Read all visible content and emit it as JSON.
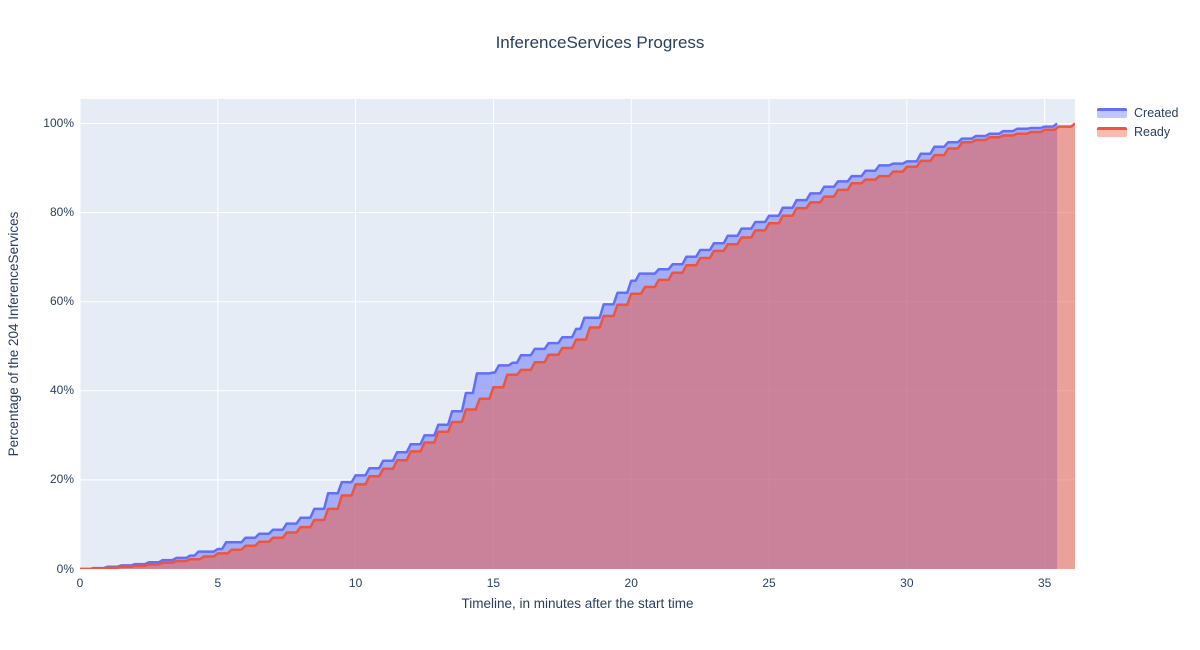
{
  "title": "InferenceServices Progress",
  "colors": {
    "created_line": "#636efa",
    "created_fill": "rgba(99,110,250,0.5)",
    "ready_line": "#ef553b",
    "ready_fill": "rgba(239,85,59,0.5)",
    "plot_background": "#e5ecf6",
    "gridline": "#ffffff",
    "text": "#2a3f5f",
    "paper_background": "#ffffff"
  },
  "chart_data": {
    "type": "area",
    "title": "InferenceServices Progress",
    "xlabel": "Timeline, in minutes after the start time",
    "ylabel": "Percentage of the 204 InferenceServices",
    "total_inferenceservices": 204,
    "xlim": [
      0,
      36.1
    ],
    "ylim": [
      0,
      105.5
    ],
    "x_ticks": [
      0,
      5,
      10,
      15,
      20,
      25,
      30,
      35
    ],
    "y_ticks": [
      {
        "value": 0,
        "label": "0%"
      },
      {
        "value": 20,
        "label": "20%"
      },
      {
        "value": 40,
        "label": "40%"
      },
      {
        "value": 60,
        "label": "60%"
      },
      {
        "value": 80,
        "label": "80%"
      },
      {
        "value": 100,
        "label": "100%"
      }
    ],
    "grid": true,
    "legend_position": "outside-top-right",
    "series": [
      {
        "name": "Created",
        "line_color": "#636efa",
        "fill_color": "rgba(99,110,250,0.5)",
        "points": [
          [
            0,
            0
          ],
          [
            0.5,
            0.2
          ],
          [
            1,
            0.5
          ],
          [
            1.5,
            0.8
          ],
          [
            2,
            1.1
          ],
          [
            2.5,
            1.5
          ],
          [
            3,
            2.0
          ],
          [
            3.5,
            2.5
          ],
          [
            4,
            3.0
          ],
          [
            4.3,
            3.9
          ],
          [
            5,
            4.5
          ],
          [
            5.3,
            6.0
          ],
          [
            6,
            7.0
          ],
          [
            6.5,
            7.9
          ],
          [
            7,
            8.8
          ],
          [
            7.5,
            10.2
          ],
          [
            8,
            11.5
          ],
          [
            8.5,
            13.5
          ],
          [
            9,
            17.0
          ],
          [
            9.5,
            19.5
          ],
          [
            10,
            21.0
          ],
          [
            10.5,
            22.6
          ],
          [
            11,
            24.3
          ],
          [
            11.5,
            26.2
          ],
          [
            12,
            28.0
          ],
          [
            12.5,
            30.0
          ],
          [
            13,
            32.4
          ],
          [
            13.5,
            35.4
          ],
          [
            14,
            39.5
          ],
          [
            14.4,
            43.9
          ],
          [
            15,
            44.1
          ],
          [
            15.2,
            45.7
          ],
          [
            15.7,
            46.3
          ],
          [
            16,
            48.0
          ],
          [
            16.5,
            49.4
          ],
          [
            17,
            50.7
          ],
          [
            17.5,
            52.0
          ],
          [
            18,
            53.9
          ],
          [
            18.3,
            56.4
          ],
          [
            19,
            59.4
          ],
          [
            19.5,
            62.0
          ],
          [
            20,
            64.7
          ],
          [
            20.3,
            66.3
          ],
          [
            21,
            67.3
          ],
          [
            21.5,
            68.4
          ],
          [
            22,
            70.1
          ],
          [
            22.5,
            71.6
          ],
          [
            23,
            73.1
          ],
          [
            23.5,
            74.8
          ],
          [
            24,
            76.4
          ],
          [
            24.5,
            77.9
          ],
          [
            25,
            79.3
          ],
          [
            25.5,
            81.1
          ],
          [
            26,
            82.8
          ],
          [
            26.5,
            84.3
          ],
          [
            27,
            85.8
          ],
          [
            27.5,
            87.0
          ],
          [
            28,
            88.2
          ],
          [
            28.5,
            89.4
          ],
          [
            29,
            90.6
          ],
          [
            29.5,
            91.0
          ],
          [
            30,
            91.5
          ],
          [
            30.5,
            93.2
          ],
          [
            31,
            94.8
          ],
          [
            31.5,
            95.8
          ],
          [
            32,
            96.6
          ],
          [
            32.5,
            97.2
          ],
          [
            33,
            97.7
          ],
          [
            33.5,
            98.3
          ],
          [
            34,
            98.8
          ],
          [
            34.5,
            99.0
          ],
          [
            35,
            99.3
          ],
          [
            35.45,
            100
          ]
        ]
      },
      {
        "name": "Ready",
        "line_color": "#ef553b",
        "fill_color": "rgba(239,85,59,0.5)",
        "points": [
          [
            0,
            0
          ],
          [
            0.5,
            0.1
          ],
          [
            1,
            0.3
          ],
          [
            1.5,
            0.5
          ],
          [
            2,
            0.7
          ],
          [
            2.5,
            1.0
          ],
          [
            3,
            1.4
          ],
          [
            3.5,
            1.8
          ],
          [
            4,
            2.2
          ],
          [
            4.5,
            2.8
          ],
          [
            5,
            3.5
          ],
          [
            5.5,
            4.3
          ],
          [
            6,
            5.2
          ],
          [
            6.5,
            6.1
          ],
          [
            7,
            7.0
          ],
          [
            7.5,
            8.2
          ],
          [
            8,
            9.4
          ],
          [
            8.5,
            11.0
          ],
          [
            9,
            13.5
          ],
          [
            9.5,
            16.5
          ],
          [
            10,
            19.0
          ],
          [
            10.5,
            20.8
          ],
          [
            11,
            22.5
          ],
          [
            11.5,
            24.4
          ],
          [
            12,
            26.4
          ],
          [
            12.5,
            28.4
          ],
          [
            13,
            30.8
          ],
          [
            13.5,
            33.0
          ],
          [
            14,
            35.8
          ],
          [
            14.5,
            38.2
          ],
          [
            15,
            40.8
          ],
          [
            15.5,
            43.6
          ],
          [
            16,
            44.7
          ],
          [
            16.5,
            46.4
          ],
          [
            17,
            48.1
          ],
          [
            17.5,
            49.6
          ],
          [
            18,
            51.5
          ],
          [
            18.5,
            54.2
          ],
          [
            19,
            56.8
          ],
          [
            19.5,
            59.3
          ],
          [
            20,
            61.8
          ],
          [
            20.5,
            63.3
          ],
          [
            21,
            64.9
          ],
          [
            21.5,
            66.5
          ],
          [
            22,
            68.2
          ],
          [
            22.5,
            69.8
          ],
          [
            23,
            71.4
          ],
          [
            23.5,
            72.9
          ],
          [
            24,
            74.4
          ],
          [
            24.5,
            76.0
          ],
          [
            25,
            77.6
          ],
          [
            25.5,
            79.3
          ],
          [
            26,
            81.0
          ],
          [
            26.5,
            82.3
          ],
          [
            27,
            83.6
          ],
          [
            27.5,
            85.1
          ],
          [
            28,
            86.6
          ],
          [
            28.5,
            87.4
          ],
          [
            29,
            88.2
          ],
          [
            29.5,
            89.2
          ],
          [
            30,
            90.3
          ],
          [
            30.5,
            91.6
          ],
          [
            31,
            92.9
          ],
          [
            31.5,
            94.4
          ],
          [
            32,
            95.8
          ],
          [
            32.5,
            96.3
          ],
          [
            33,
            96.9
          ],
          [
            33.5,
            97.3
          ],
          [
            34,
            97.7
          ],
          [
            34.5,
            98.1
          ],
          [
            35,
            98.6
          ],
          [
            35.5,
            99.3
          ],
          [
            36.1,
            100
          ]
        ]
      }
    ]
  }
}
